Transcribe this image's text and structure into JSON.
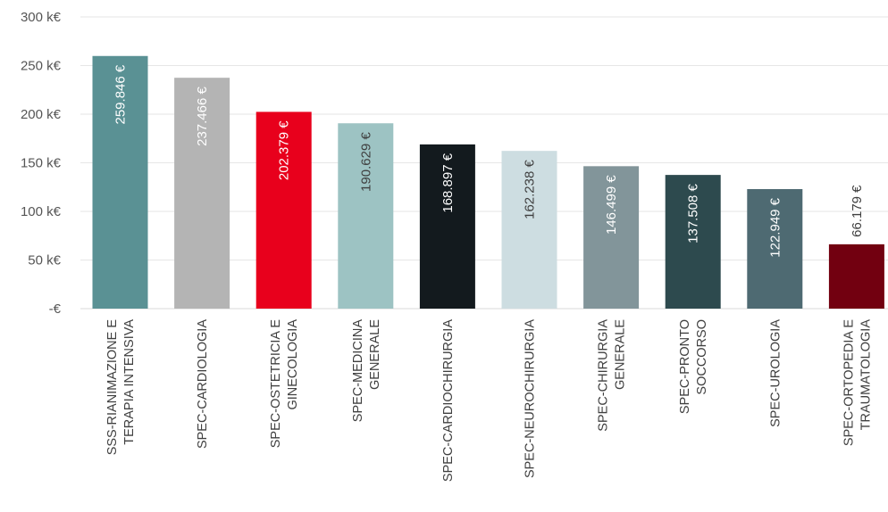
{
  "chart_data": {
    "type": "bar",
    "categories": [
      [
        "SSS-RIANIMAZIONE E",
        "TERAPIA INTENSIVA"
      ],
      [
        "SPEC-CARDIOLOGIA"
      ],
      [
        "SPEC-OSTETRICIA E",
        "GINECOLOGIA"
      ],
      [
        "SPEC-MEDICINA",
        "GENERALE"
      ],
      [
        "SPEC-CARDIOCHIRURGIA"
      ],
      [
        "SPEC-NEUROCHIRURGIA"
      ],
      [
        "SPEC-CHIRURGIA",
        "GENERALE"
      ],
      [
        "SPEC-PRONTO",
        "SOCCORSO"
      ],
      [
        "SPEC-UROLOGIA"
      ],
      [
        "SPEC-ORTOPEDIA E",
        "TRAUMATOLOGIA"
      ]
    ],
    "values": [
      259846,
      237466,
      202379,
      190629,
      168897,
      162238,
      146499,
      137508,
      122949,
      66179
    ],
    "data_labels": [
      "259.846 €",
      "237.466 €",
      "202.379 €",
      "190.629 €",
      "168.897 €",
      "162.238 €",
      "146.499 €",
      "137.508 €",
      "122.949 €",
      "66.179 €"
    ],
    "colors": [
      "#5a9194",
      "#b4b4b4",
      "#e8001c",
      "#9dc3c3",
      "#131a1e",
      "#cddde1",
      "#82959a",
      "#2d4a4e",
      "#4e6a72",
      "#720010"
    ],
    "label_colors": [
      "#ffffff",
      "#ffffff",
      "#ffffff",
      "#404040",
      "#ffffff",
      "#404040",
      "#ffffff",
      "#ffffff",
      "#ffffff",
      "#404040"
    ],
    "label_outside": [
      false,
      false,
      false,
      false,
      false,
      false,
      false,
      false,
      false,
      true
    ],
    "yticks": [
      0,
      50000,
      100000,
      150000,
      200000,
      250000,
      300000
    ],
    "ytick_labels": [
      "-€",
      "50 k€",
      "100 k€",
      "150 k€",
      "200 k€",
      "250 k€",
      "300 k€"
    ],
    "ylim": [
      0,
      300000
    ],
    "grid": true,
    "title": "",
    "xlabel": "",
    "ylabel": ""
  }
}
